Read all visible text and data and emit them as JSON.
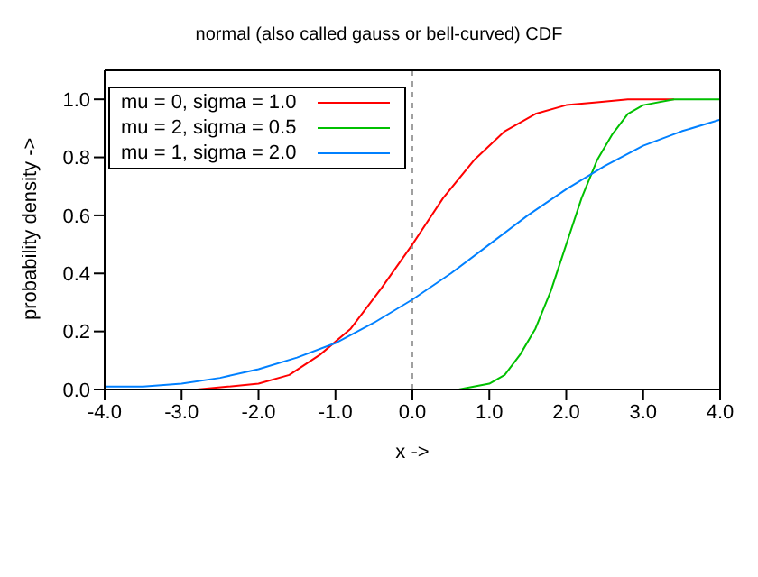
{
  "chart_data": {
    "type": "line",
    "title": "normal (also called gauss or bell-curved) CDF",
    "xlabel": "x ->",
    "ylabel": "probability density ->",
    "series": [
      {
        "name": "mu = 0, sigma = 1.0",
        "color": "#ff0000",
        "x": [
          -2.8,
          -2.4,
          -2.0,
          -1.6,
          -1.2,
          -0.8,
          -0.4,
          0.0,
          0.4,
          0.8,
          1.2,
          1.6,
          2.0,
          2.4,
          2.8,
          3.4
        ],
        "values": [
          0.0,
          0.01,
          0.02,
          0.05,
          0.12,
          0.21,
          0.35,
          0.5,
          0.66,
          0.79,
          0.89,
          0.95,
          0.98,
          0.99,
          1.0,
          1.0
        ]
      },
      {
        "name": "mu = 2, sigma = 0.5",
        "color": "#00c000",
        "x": [
          0.6,
          0.8,
          1.0,
          1.2,
          1.4,
          1.6,
          1.8,
          2.0,
          2.2,
          2.4,
          2.6,
          2.8,
          3.0,
          3.4,
          4.0
        ],
        "values": [
          0.0,
          0.01,
          0.02,
          0.05,
          0.12,
          0.21,
          0.34,
          0.5,
          0.66,
          0.79,
          0.88,
          0.95,
          0.98,
          1.0,
          1.0
        ]
      },
      {
        "name": "mu = 1, sigma = 2.0",
        "color": "#0080ff",
        "x": [
          -4.0,
          -3.5,
          -3.0,
          -2.5,
          -2.0,
          -1.5,
          -1.0,
          -0.5,
          0.0,
          0.5,
          1.0,
          1.5,
          2.0,
          2.5,
          3.0,
          3.5,
          4.0
        ],
        "values": [
          0.01,
          0.01,
          0.02,
          0.04,
          0.07,
          0.11,
          0.16,
          0.23,
          0.31,
          0.4,
          0.5,
          0.6,
          0.69,
          0.77,
          0.84,
          0.89,
          0.93
        ]
      }
    ],
    "xlim": [
      -4,
      4
    ],
    "ylim": [
      0,
      1.1
    ],
    "xticks": [
      {
        "value": -4,
        "label": "-4.0"
      },
      {
        "value": -3,
        "label": "-3.0"
      },
      {
        "value": -2,
        "label": "-2.0"
      },
      {
        "value": -1,
        "label": "-1.0"
      },
      {
        "value": 0,
        "label": "0.0"
      },
      {
        "value": 1,
        "label": "1.0"
      },
      {
        "value": 2,
        "label": "2.0"
      },
      {
        "value": 3,
        "label": "3.0"
      },
      {
        "value": 4,
        "label": "4.0"
      }
    ],
    "yticks": [
      {
        "value": 0,
        "label": "0.0"
      },
      {
        "value": 0.2,
        "label": "0.2"
      },
      {
        "value": 0.4,
        "label": "0.4"
      },
      {
        "value": 0.6,
        "label": "0.6"
      },
      {
        "value": 0.8,
        "label": "0.8"
      },
      {
        "value": 1.0,
        "label": "1.0"
      }
    ],
    "ref_lines": [
      {
        "axis": "x",
        "value": 0,
        "color": "#a0a0a0",
        "line_style": "dashed"
      }
    ],
    "legend": "top left",
    "grid": false
  }
}
